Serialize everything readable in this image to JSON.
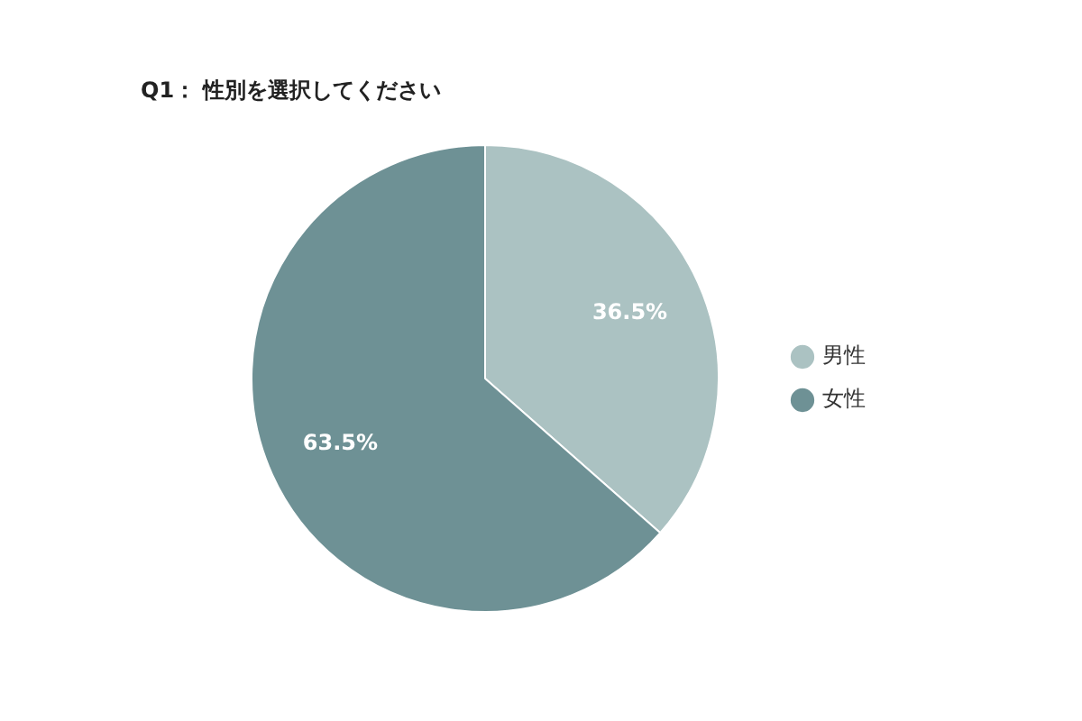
{
  "chart_data": {
    "type": "pie",
    "title": "Q1： 性別を選択してください",
    "categories": [
      "男性",
      "女性"
    ],
    "values": [
      36.5,
      63.5
    ],
    "colors": [
      "#abc2c2",
      "#6e9195"
    ],
    "value_labels": [
      "36.5%",
      "63.5%"
    ],
    "legend": "right"
  }
}
